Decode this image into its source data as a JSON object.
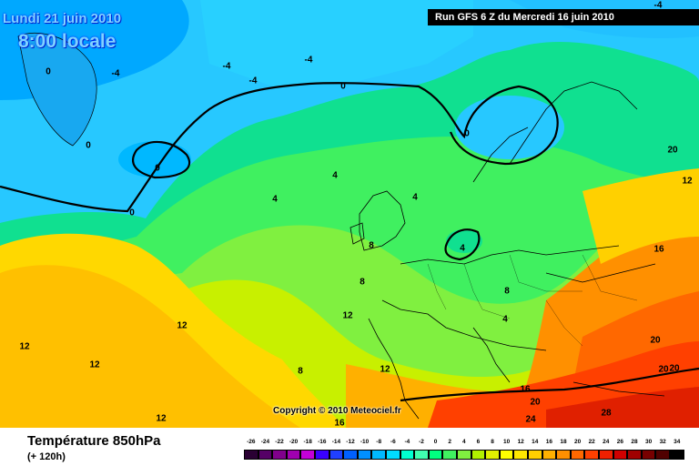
{
  "header": {
    "date_label": "Lundi 21 juin 2010",
    "time_label": "8:00 locale",
    "run_label": "Run GFS 6 Z du Mercredi 16 juin 2010"
  },
  "copyright": "Copyright © 2010 Meteociel.fr",
  "footer": {
    "title": "Température 850hPa",
    "subtitle": "(+ 120h)"
  },
  "legend": {
    "values": [
      "-26",
      "-24",
      "-22",
      "-20",
      "-18",
      "-16",
      "-14",
      "-12",
      "-10",
      "-8",
      "-6",
      "-4",
      "-2",
      "0",
      "2",
      "4",
      "6",
      "8",
      "10",
      "12",
      "14",
      "16",
      "18",
      "20",
      "22",
      "24",
      "26",
      "28",
      "30",
      "32",
      "34"
    ],
    "colors": [
      "#2a0033",
      "#550066",
      "#80008c",
      "#a000b0",
      "#c400d8",
      "#3a00ff",
      "#2040ff",
      "#0060ff",
      "#0090ff",
      "#00b8ff",
      "#00dcff",
      "#00ffd0",
      "#40ffb0",
      "#00ff80",
      "#40f060",
      "#80f040",
      "#b0f000",
      "#e0f000",
      "#ffff00",
      "#ffe800",
      "#ffd000",
      "#ffb000",
      "#ff9000",
      "#ff6800",
      "#ff4000",
      "#f02000",
      "#d00000",
      "#a00000",
      "#780000",
      "#500000",
      "#000000"
    ]
  },
  "contour_labels": [
    "-4",
    "-4",
    "-4",
    "-4",
    "-4",
    "0",
    "0",
    "0",
    "0",
    "0",
    "0",
    "4",
    "4",
    "4",
    "4",
    "4",
    "8",
    "8",
    "8",
    "8",
    "12",
    "12",
    "12",
    "12",
    "12",
    "12",
    "12",
    "16",
    "16",
    "16",
    "20",
    "20",
    "20",
    "20",
    "20",
    "24",
    "28"
  ]
}
